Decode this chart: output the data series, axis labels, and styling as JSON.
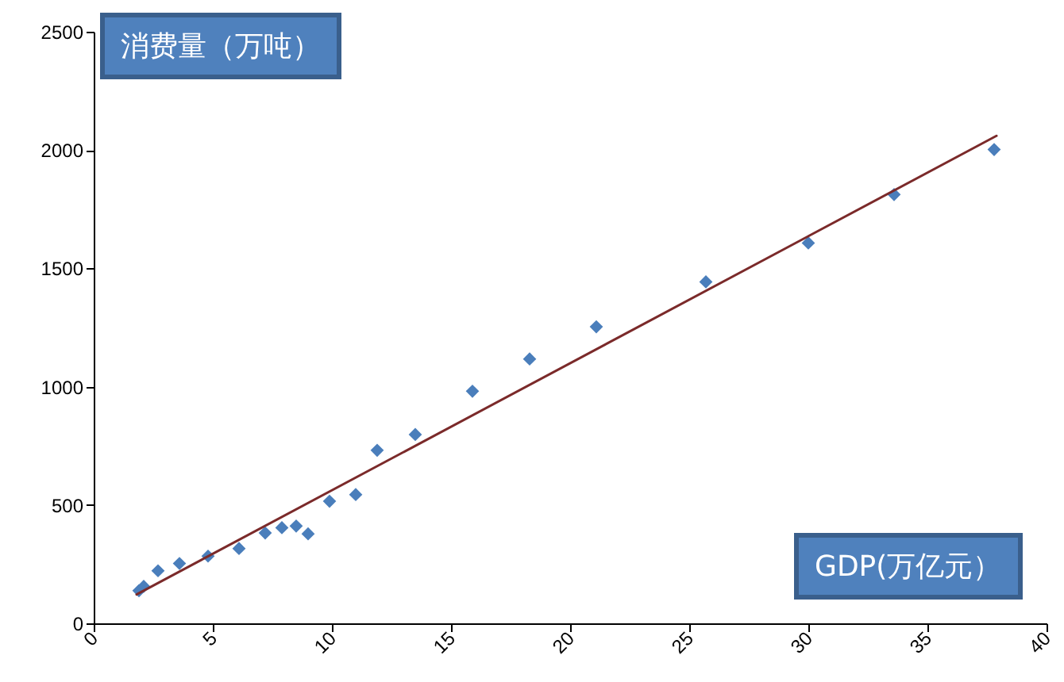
{
  "chart_data": {
    "type": "scatter",
    "xlabel": "GDP(万亿元）",
    "ylabel": "消费量（万吨）",
    "xlim": [
      0,
      40
    ],
    "xticks": [
      0,
      5,
      10,
      15,
      20,
      25,
      30,
      35,
      40
    ],
    "ylim": [
      0,
      2500
    ],
    "yticks": [
      0,
      500,
      1000,
      1500,
      2000,
      2500
    ],
    "grid": false,
    "marker": "diamond",
    "series": [
      {
        "color": "#4a7ebb",
        "x": [
          1.9,
          2.1,
          2.7,
          3.6,
          4.8,
          6.1,
          7.2,
          7.9,
          8.5,
          9.0,
          9.9,
          11.0,
          11.9,
          13.5,
          15.9,
          18.3,
          21.1,
          25.7,
          30.0,
          33.6,
          37.8
        ],
        "values": [
          138,
          156,
          222,
          253,
          284,
          316,
          382,
          404,
          411,
          378,
          516,
          544,
          731,
          798,
          981,
          1117,
          1253,
          1443,
          1607,
          1812,
          2002
        ]
      },
      {
        "type": "line",
        "marker": "none",
        "color": "#7b2a2a",
        "x": [
          1.8,
          37.9
        ],
        "values": [
          122,
          2060
        ]
      }
    ]
  }
}
